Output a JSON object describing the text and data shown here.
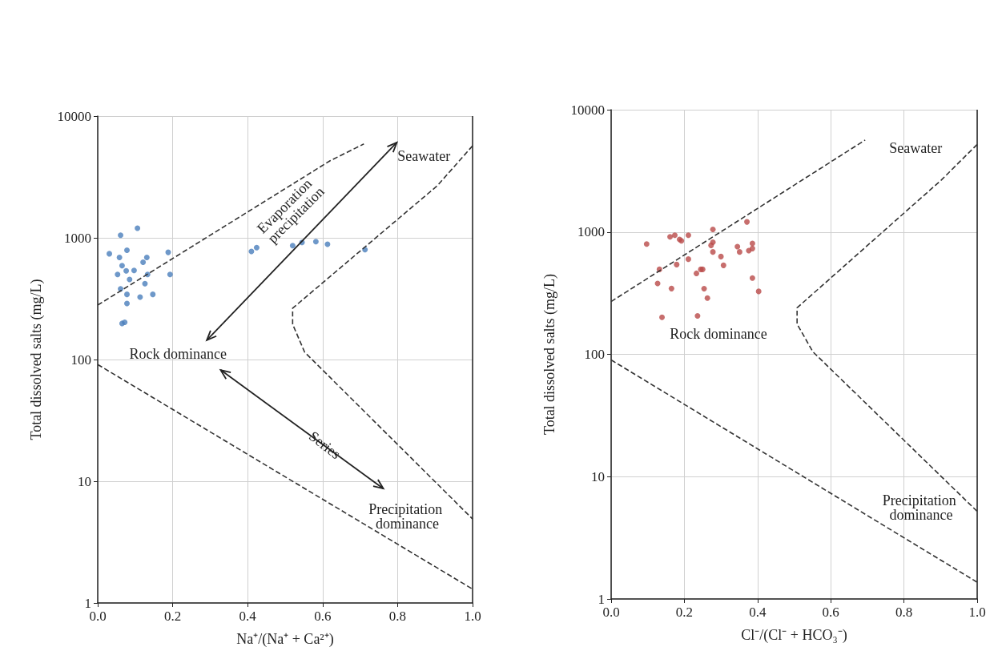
{
  "chart_data": [
    {
      "type": "scatter",
      "xlabel": "Na⁺/(Na⁺ + Ca²⁺)",
      "ylabel": "Total dissolved salts (mg/L)",
      "log": "y",
      "grid": true,
      "xlim": [
        0,
        1
      ],
      "ylim": [
        1,
        10000
      ],
      "xticks": [
        {
          "value": 0,
          "label": "0.0"
        },
        {
          "value": 0.2,
          "label": "0.2"
        },
        {
          "value": 0.4,
          "label": "0.4"
        },
        {
          "value": 0.6,
          "label": "0.6"
        },
        {
          "value": 0.8,
          "label": "0.8"
        },
        {
          "value": 1,
          "label": "1.0"
        }
      ],
      "yticks": [
        1,
        10,
        100,
        1000,
        10000
      ],
      "annotations": [
        "Seawater",
        "Evaporation precipitation",
        "Rock dominance",
        "Series",
        "Precipitation dominance"
      ],
      "series": [
        {
          "marker": "circle",
          "color": "#4a7ebb",
          "x": [
            0.106,
            0.061,
            0.031,
            0.078,
            0.058,
            0.131,
            0.121,
            0.188,
            0.065,
            0.076,
            0.097,
            0.053,
            0.133,
            0.193,
            0.085,
            0.126,
            0.061,
            0.078,
            0.113,
            0.147,
            0.078,
            0.065,
            0.072,
            0.41,
            0.424,
            0.52,
            0.545,
            0.582,
            0.613,
            0.713
          ],
          "values": [
            1200,
            1050,
            740,
            790,
            690,
            690,
            630,
            760,
            590,
            535,
            540,
            500,
            500,
            500,
            455,
            420,
            381,
            343,
            326,
            343,
            289,
            198,
            202,
            773,
            830,
            863,
            916,
            930,
            885,
            800
          ]
        },
        {
          "type": "line",
          "marker": "none",
          "line_style": "dashed",
          "color": "#333333",
          "x": [
            0,
            0.62,
            0.71
          ],
          "values": [
            280,
            4300,
            5900
          ]
        },
        {
          "type": "line",
          "marker": "none",
          "line_style": "dashed",
          "color": "#333333",
          "x": [
            1,
            0.906,
            0.52,
            0.52,
            0.552,
            1
          ],
          "values": [
            5700,
            2680,
            264,
            195,
            115,
            4.9
          ]
        },
        {
          "type": "line",
          "marker": "none",
          "line_style": "dashed",
          "color": "#333333",
          "x": [
            0,
            1
          ],
          "values": [
            91,
            1.3
          ]
        }
      ]
    },
    {
      "type": "scatter",
      "xlabel": "Cl⁻/(Cl⁻ + HCO₃⁻)",
      "ylabel": "Total dissolved salts (mg/L)",
      "log": "y",
      "grid": true,
      "xlim": [
        0,
        1
      ],
      "ylim": [
        1,
        10000
      ],
      "xticks": [
        {
          "value": 0,
          "label": "0.0"
        },
        {
          "value": 0.2,
          "label": "0.2"
        },
        {
          "value": 0.4,
          "label": "0.4"
        },
        {
          "value": 0.6,
          "label": "0.6"
        },
        {
          "value": 0.8,
          "label": "0.8"
        },
        {
          "value": 1,
          "label": "1.0"
        }
      ],
      "yticks": [
        1,
        10,
        100,
        1000,
        10000
      ],
      "annotations": [
        "Seawater",
        "Rock dominance",
        "Precipitation dominance"
      ],
      "series": [
        {
          "marker": "circle",
          "color": "#b94a48",
          "x": [
            0.371,
            0.278,
            0.161,
            0.174,
            0.211,
            0.187,
            0.192,
            0.097,
            0.278,
            0.273,
            0.345,
            0.386,
            0.351,
            0.376,
            0.386,
            0.278,
            0.3,
            0.211,
            0.307,
            0.179,
            0.132,
            0.245,
            0.25,
            0.233,
            0.127,
            0.165,
            0.254,
            0.386,
            0.403,
            0.263,
            0.139,
            0.236
          ],
          "values": [
            1210,
            1050,
            914,
            942,
            942,
            869,
            847,
            798,
            826,
            778,
            759,
            807,
            687,
            705,
            733,
            687,
            630,
            600,
            534,
            542,
            495,
            495,
            495,
            459,
            380,
            345,
            344,
            420,
            327,
            288,
            201,
            206
          ]
        },
        {
          "type": "line",
          "marker": "none",
          "line_style": "dashed",
          "color": "#333333",
          "x": [
            0,
            0.694
          ],
          "values": [
            270,
            5650
          ]
        },
        {
          "type": "line",
          "marker": "none",
          "line_style": "dashed",
          "color": "#333333",
          "x": [
            1,
            0.902,
            0.508,
            0.508,
            0.551,
            1
          ],
          "values": [
            5200,
            2660,
            240,
            177,
            105,
            5.2
          ]
        },
        {
          "type": "line",
          "marker": "none",
          "line_style": "dashed",
          "color": "#333333",
          "x": [
            0,
            1
          ],
          "values": [
            90,
            1.37
          ]
        }
      ]
    }
  ]
}
